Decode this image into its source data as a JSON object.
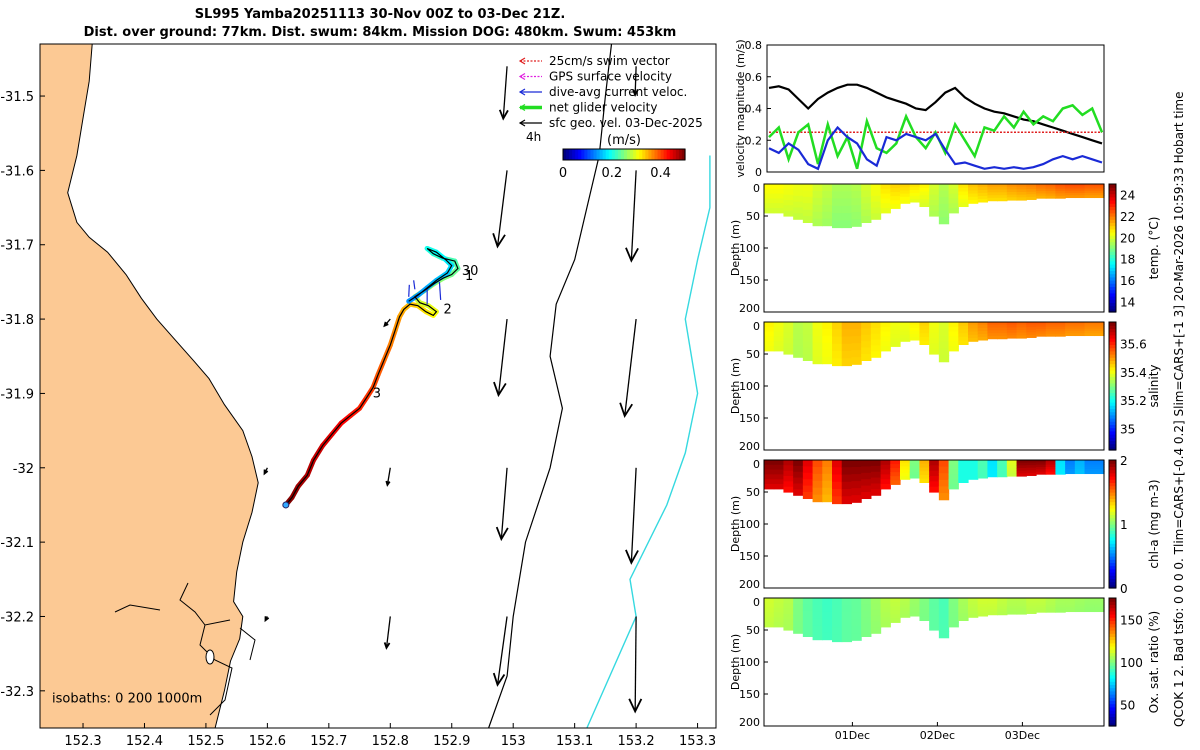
{
  "header": {
    "title_line1": "SL995 Yamba20251113 30-Nov 00Z to 03-Dec 21Z.",
    "title_line2": "Dist. over ground: 77km. Dist. swum: 84km. Mission DOG: 480km. Swum: 453km"
  },
  "side_note": "QCOK 1  2. Bad tsfo: 0  0  0  0. Tlim=CARS+[-0.4 0.2] Slim=CARS+[-1 3] 20-Mar-2026 10:59:33 Hobart time",
  "colors": {
    "land": "#fcc994",
    "sea": "#ffffff",
    "isobath_1000": "#000000",
    "isobath_200": "#36d9e0",
    "vel_black": "#000000",
    "vel_green": "#22dd22",
    "vel_blue": "#1a2ad6",
    "vel_red": "#e02020"
  },
  "chart_data": [
    {
      "type": "map",
      "name": "glider-track-map",
      "xlim": [
        152.23,
        153.33
      ],
      "ylim": [
        -32.35,
        -31.43
      ],
      "xticks": [
        "152.3",
        "152.4",
        "152.5",
        "152.6",
        "152.7",
        "152.8",
        "152.9",
        "153",
        "153.1",
        "153.2",
        "153.3"
      ],
      "xtick_values": [
        152.3,
        152.4,
        152.5,
        152.6,
        152.7,
        152.8,
        152.9,
        153.0,
        153.1,
        153.2,
        153.3
      ],
      "yticks": [
        "-31.5",
        "-31.6",
        "-31.7",
        "-31.8",
        "-31.9",
        "-32",
        "-32.1",
        "-32.2",
        "-32.3"
      ],
      "ytick_values": [
        -31.5,
        -31.6,
        -31.7,
        -31.8,
        -31.9,
        -32.0,
        -32.1,
        -32.2,
        -32.3
      ],
      "legend": [
        {
          "label": "25cm/s swim vector",
          "color": "#e02020",
          "style": "dotted"
        },
        {
          "label": "GPS surface velocity",
          "color": "#e020e0",
          "style": "dotted"
        },
        {
          "label": "dive-avg current veloc.",
          "color": "#1a2ad6",
          "style": "solid"
        },
        {
          "label": "net glider velocity",
          "color": "#22dd22",
          "style": "thick"
        },
        {
          "label": "sfc geo. vel. 03-Dec-2025",
          "color": "#000000",
          "style": "solid"
        }
      ],
      "legend_extra": "4h",
      "colorbar": {
        "label": "(m/s)",
        "ticks": [
          "0",
          "0.2",
          "0.4"
        ],
        "tick_values": [
          0,
          0.2,
          0.4
        ],
        "range": [
          0,
          0.5
        ]
      },
      "isobath_label": "isobaths: 0   200  1000m",
      "track": [
        [
          152.63,
          -32.05
        ],
        [
          152.64,
          -32.04
        ],
        [
          152.65,
          -32.025
        ],
        [
          152.665,
          -32.01
        ],
        [
          152.675,
          -31.99
        ],
        [
          152.69,
          -31.97
        ],
        [
          152.705,
          -31.955
        ],
        [
          152.72,
          -31.94
        ],
        [
          152.735,
          -31.93
        ],
        [
          152.75,
          -31.92
        ],
        [
          152.762,
          -31.905
        ],
        [
          152.772,
          -31.892
        ],
        [
          152.78,
          -31.875
        ],
        [
          152.79,
          -31.855
        ],
        [
          152.8,
          -31.835
        ],
        [
          152.808,
          -31.815
        ],
        [
          152.815,
          -31.797
        ],
        [
          152.822,
          -31.787
        ],
        [
          152.832,
          -31.78
        ],
        [
          152.845,
          -31.782
        ],
        [
          152.858,
          -31.79
        ],
        [
          152.87,
          -31.795
        ],
        [
          152.875,
          -31.79
        ],
        [
          152.862,
          -31.782
        ],
        [
          152.848,
          -31.778
        ],
        [
          152.84,
          -31.77
        ],
        [
          152.855,
          -31.762
        ],
        [
          152.872,
          -31.752
        ],
        [
          152.886,
          -31.745
        ],
        [
          152.9,
          -31.74
        ],
        [
          152.91,
          -31.732
        ],
        [
          152.905,
          -31.722
        ],
        [
          152.885,
          -31.718
        ],
        [
          152.87,
          -31.712
        ],
        [
          152.86,
          -31.705
        ],
        [
          152.875,
          -31.71
        ],
        [
          152.89,
          -31.72
        ],
        [
          152.9,
          -31.728
        ],
        [
          152.893,
          -31.738
        ],
        [
          152.875,
          -31.748
        ],
        [
          152.86,
          -31.758
        ],
        [
          152.845,
          -31.768
        ],
        [
          152.83,
          -31.776
        ]
      ],
      "track_markers": [
        {
          "label": "30",
          "lon": 152.91,
          "lat": -31.735
        },
        {
          "label": "1",
          "lon": 152.915,
          "lat": -31.742
        },
        {
          "label": "2",
          "lon": 152.88,
          "lat": -31.787
        },
        {
          "label": "3",
          "lon": 152.765,
          "lat": -31.9
        }
      ],
      "geo_vectors": [
        {
          "lon": 152.99,
          "lat": -31.46,
          "u": -0.04,
          "v": -0.55
        },
        {
          "lon": 153.2,
          "lat": -31.46,
          "u": -0.01,
          "v": -0.3
        },
        {
          "lon": 152.99,
          "lat": -31.6,
          "u": -0.1,
          "v": -0.8
        },
        {
          "lon": 153.2,
          "lat": -31.6,
          "u": -0.05,
          "v": -0.95
        },
        {
          "lon": 152.99,
          "lat": -31.8,
          "u": -0.09,
          "v": -0.8
        },
        {
          "lon": 153.2,
          "lat": -31.8,
          "u": -0.12,
          "v": -1.02
        },
        {
          "lon": 152.8,
          "lat": -31.8,
          "u": -0.06,
          "v": -0.07
        },
        {
          "lon": 152.99,
          "lat": -32.0,
          "u": -0.06,
          "v": -0.75
        },
        {
          "lon": 153.2,
          "lat": -32.0,
          "u": -0.05,
          "v": -1.0
        },
        {
          "lon": 152.8,
          "lat": -32.0,
          "u": -0.03,
          "v": -0.18
        },
        {
          "lon": 152.6,
          "lat": -32.0,
          "u": -0.03,
          "v": -0.06
        },
        {
          "lon": 152.99,
          "lat": -32.2,
          "u": -0.1,
          "v": -0.72
        },
        {
          "lon": 153.2,
          "lat": -32.2,
          "u": -0.01,
          "v": -1.0
        },
        {
          "lon": 152.8,
          "lat": -32.2,
          "u": -0.04,
          "v": -0.33
        },
        {
          "lon": 152.6,
          "lat": -32.2,
          "u": -0.02,
          "v": -0.04
        }
      ]
    },
    {
      "type": "line",
      "name": "velocity-magnitude-timeseries",
      "ylabel": "velocity magnitude (m/s)",
      "ylim": [
        0,
        0.8
      ],
      "yticks": [
        "0",
        "0.2",
        "0.4",
        "0.6",
        "0.8"
      ],
      "ytick_values": [
        0,
        0.2,
        0.4,
        0.6,
        0.8
      ],
      "series": [
        {
          "name": "sfc geo. vel.",
          "color": "#000000",
          "values": [
            0.53,
            0.54,
            0.52,
            0.46,
            0.4,
            0.46,
            0.5,
            0.53,
            0.55,
            0.55,
            0.53,
            0.5,
            0.47,
            0.45,
            0.43,
            0.4,
            0.39,
            0.44,
            0.5,
            0.53,
            0.47,
            0.43,
            0.4,
            0.38,
            0.37,
            0.35,
            0.33,
            0.32,
            0.3,
            0.28,
            0.26,
            0.24,
            0.22,
            0.2,
            0.18
          ]
        },
        {
          "name": "swim vector",
          "color": "#e02020",
          "values": [
            0.25,
            0.25,
            0.25,
            0.25,
            0.25,
            0.25,
            0.25,
            0.25,
            0.25,
            0.25,
            0.25,
            0.25,
            0.25,
            0.25,
            0.25,
            0.25,
            0.25,
            0.25,
            0.25,
            0.25,
            0.25,
            0.25,
            0.25,
            0.25,
            0.25,
            0.25,
            0.25,
            0.25,
            0.25,
            0.25,
            0.25,
            0.25,
            0.25,
            0.25,
            0.25
          ]
        },
        {
          "name": "net glider velocity",
          "color": "#22dd22",
          "values": [
            0.22,
            0.28,
            0.08,
            0.25,
            0.3,
            0.05,
            0.3,
            0.1,
            0.22,
            0.02,
            0.32,
            0.15,
            0.12,
            0.18,
            0.35,
            0.22,
            0.15,
            0.25,
            0.12,
            0.3,
            0.2,
            0.1,
            0.28,
            0.26,
            0.35,
            0.28,
            0.38,
            0.3,
            0.35,
            0.32,
            0.4,
            0.42,
            0.36,
            0.4,
            0.25
          ]
        },
        {
          "name": "dive-avg current",
          "color": "#1a2ad6",
          "values": [
            0.15,
            0.12,
            0.18,
            0.14,
            0.05,
            0.02,
            0.2,
            0.28,
            0.22,
            0.18,
            0.08,
            0.04,
            0.22,
            0.2,
            0.24,
            0.22,
            0.2,
            0.24,
            0.14,
            0.05,
            0.06,
            0.04,
            0.02,
            0.03,
            0.02,
            0.03,
            0.02,
            0.03,
            0.05,
            0.08,
            0.1,
            0.08,
            0.1,
            0.08,
            0.06
          ]
        }
      ]
    },
    {
      "type": "heatmap",
      "name": "temperature-section",
      "ylabel": "Depth (m)",
      "ylim": [
        0,
        200
      ],
      "yticks": [
        "0",
        "50",
        "100",
        "150",
        "200"
      ],
      "ytick_values": [
        0,
        50,
        100,
        150,
        200
      ],
      "colorbar": {
        "label": "temp. (°C)",
        "range": [
          13,
          25
        ],
        "ticks": [
          "14",
          "16",
          "18",
          "20",
          "22",
          "24"
        ],
        "tick_values": [
          14,
          16,
          18,
          20,
          22,
          24
        ]
      },
      "surface_value": 21.5,
      "deep_value": 17.0,
      "bottom_profile": [
        45,
        45,
        50,
        55,
        60,
        65,
        65,
        68,
        68,
        66,
        60,
        55,
        45,
        38,
        30,
        28,
        35,
        50,
        62,
        45,
        35,
        30,
        28,
        26,
        26,
        25,
        25,
        24,
        22,
        22,
        22,
        21,
        21,
        21,
        21
      ],
      "values_by_time": [
        20.5,
        20.5,
        20.4,
        20.3,
        20.3,
        20.0,
        19.8,
        19.5,
        19.5,
        19.6,
        20.0,
        20.4,
        20.8,
        21.0,
        21.0,
        20.8,
        20.6,
        20.0,
        19.6,
        20.0,
        20.8,
        21.2,
        21.4,
        21.6,
        21.6,
        21.8,
        21.9,
        22.0,
        22.2,
        22.3,
        22.5,
        22.6,
        22.6,
        22.5,
        22.5
      ]
    },
    {
      "type": "heatmap",
      "name": "salinity-section",
      "ylabel": "Depth (m)",
      "ylim": [
        0,
        200
      ],
      "yticks": [
        "0",
        "50",
        "100",
        "150",
        "200"
      ],
      "ytick_values": [
        0,
        50,
        100,
        150,
        200
      ],
      "colorbar": {
        "label": "salinity",
        "range": [
          34.85,
          35.75
        ],
        "ticks": [
          "35",
          "35.2",
          "35.4",
          "35.6"
        ],
        "tick_values": [
          35.0,
          35.2,
          35.4,
          35.6
        ]
      },
      "surface_value": 35.45,
      "deep_value": 35.3,
      "bottom_profile": [
        45,
        45,
        50,
        55,
        60,
        65,
        65,
        68,
        68,
        66,
        60,
        55,
        45,
        38,
        30,
        28,
        35,
        50,
        62,
        45,
        35,
        30,
        28,
        26,
        26,
        25,
        25,
        24,
        22,
        22,
        22,
        21,
        21,
        21,
        21
      ],
      "values_by_time": [
        35.42,
        35.4,
        35.38,
        35.35,
        35.36,
        35.4,
        35.42,
        35.45,
        35.48,
        35.48,
        35.46,
        35.44,
        35.42,
        35.4,
        35.4,
        35.42,
        35.45,
        35.4,
        35.38,
        35.42,
        35.46,
        35.5,
        35.52,
        35.55,
        35.55,
        35.56,
        35.55,
        35.56,
        35.56,
        35.55,
        35.55,
        35.54,
        35.54,
        35.53,
        35.53
      ]
    },
    {
      "type": "heatmap",
      "name": "chlorophyll-section",
      "ylabel": "Depth (m)",
      "ylim": [
        0,
        200
      ],
      "yticks": [
        "0",
        "50",
        "100",
        "150",
        "200"
      ],
      "ytick_values": [
        0,
        50,
        100,
        150,
        200
      ],
      "colorbar": {
        "label": "chl-a  (mg m-3)",
        "range": [
          0,
          2
        ],
        "ticks": [
          "0",
          "1",
          "2"
        ],
        "tick_values": [
          0,
          1,
          2
        ]
      },
      "surface_value": 2.0,
      "deep_value": 0.8,
      "bottom_profile": [
        45,
        45,
        50,
        55,
        60,
        65,
        65,
        68,
        68,
        66,
        60,
        55,
        45,
        38,
        30,
        28,
        35,
        50,
        62,
        45,
        35,
        30,
        28,
        26,
        26,
        25,
        25,
        24,
        22,
        22,
        22,
        21,
        21,
        21,
        21
      ],
      "values_by_time": [
        2.0,
        2.0,
        1.9,
        2.0,
        1.8,
        1.6,
        1.5,
        1.8,
        2.0,
        2.0,
        2.0,
        2.0,
        1.9,
        1.7,
        1.3,
        1.0,
        1.4,
        1.9,
        1.6,
        1.0,
        0.8,
        0.8,
        0.9,
        0.7,
        0.9,
        1.2,
        2.0,
        2.0,
        2.0,
        1.9,
        0.7,
        0.5,
        0.6,
        0.5,
        0.5
      ]
    },
    {
      "type": "heatmap",
      "name": "oxygen-saturation-section",
      "ylabel": "Depth (m)",
      "ylim": [
        0,
        200
      ],
      "yticks": [
        "0",
        "50",
        "100",
        "150",
        "200"
      ],
      "ytick_values": [
        0,
        50,
        100,
        150,
        200
      ],
      "xlabel_ticks": [
        "01Dec",
        "02Dec",
        "03Dec"
      ],
      "colorbar": {
        "label": "Ox. sat. ratio (%)",
        "range": [
          25,
          175
        ],
        "ticks": [
          "50",
          "100",
          "150"
        ],
        "tick_values": [
          50,
          100,
          150
        ]
      },
      "surface_value": 120,
      "deep_value": 95,
      "bottom_profile": [
        45,
        45,
        50,
        55,
        60,
        65,
        65,
        68,
        68,
        66,
        60,
        55,
        45,
        38,
        30,
        28,
        35,
        50,
        62,
        45,
        35,
        30,
        28,
        26,
        26,
        25,
        25,
        24,
        22,
        22,
        22,
        21,
        21,
        21,
        21
      ],
      "values_by_time": [
        112,
        110,
        108,
        100,
        95,
        92,
        90,
        92,
        95,
        96,
        100,
        104,
        108,
        110,
        108,
        104,
        100,
        95,
        92,
        100,
        106,
        110,
        112,
        112,
        110,
        108,
        108,
        110,
        110,
        108,
        106,
        106,
        105,
        104,
        104
      ]
    }
  ]
}
